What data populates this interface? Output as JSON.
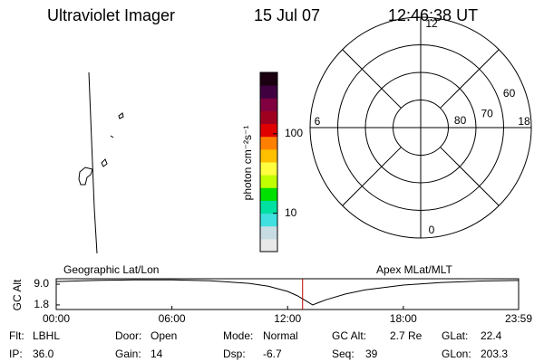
{
  "header": {
    "title": "Ultraviolet Imager",
    "date": "15 Jul 07",
    "time": "12:46:38 UT"
  },
  "map": {
    "label": "Geographic Lat/Lon"
  },
  "colorbar": {
    "label": "photon cm⁻²s⁻¹",
    "log": true,
    "lim": [
      3.3,
      590
    ],
    "ticks": [
      10,
      100
    ],
    "colors": [
      "#e8e8e8",
      "#c8dce4",
      "#40e0e0",
      "#00e0a0",
      "#00e000",
      "#c0ff00",
      "#ffff40",
      "#ffc000",
      "#ff8000",
      "#e00000",
      "#a00020",
      "#800040",
      "#400040",
      "#1a0010"
    ]
  },
  "polar": {
    "label": "Apex MLat/MLT",
    "rlim": [
      90,
      50
    ],
    "lat_rings": [
      80,
      70,
      60
    ],
    "mlt_labels": [
      {
        "value": 12,
        "label": "12"
      },
      {
        "value": 18,
        "label": "18"
      },
      {
        "value": 6,
        "label": "6"
      },
      {
        "value": 0,
        "label": "0"
      }
    ]
  },
  "chart_data": {
    "type": "line",
    "ylabel": "GC Alt",
    "x": [
      0,
      2,
      4,
      6,
      8,
      10,
      11,
      12,
      12.5,
      13,
      13.3,
      13.6,
      14,
      15,
      16,
      18,
      20,
      22,
      23.98
    ],
    "values": [
      9.9,
      10.3,
      10.5,
      10.5,
      10.2,
      9.3,
      8.3,
      6.5,
      5.0,
      3.0,
      1.8,
      2.6,
      3.6,
      5.6,
      7.0,
      8.7,
      9.6,
      10.1,
      10.3
    ],
    "color": "#000000",
    "marker_x": 12.777,
    "marker_color": "#c00000",
    "xlim": [
      0,
      23.98
    ],
    "xticks": [
      {
        "value": 0,
        "label": "00:00"
      },
      {
        "value": 6,
        "label": "06:00"
      },
      {
        "value": 12,
        "label": "12:00"
      },
      {
        "value": 18,
        "label": "18:00"
      },
      {
        "value": 23.98,
        "label": "23:59"
      }
    ],
    "ylim": [
      0.2,
      10.9
    ],
    "yticks": [
      {
        "value": 9.0,
        "label": "9.0"
      },
      1.8
    ]
  },
  "info": [
    [
      {
        "label": "Flt:",
        "value": "LBHL"
      },
      {
        "label": "Door:",
        "value": "Open"
      },
      {
        "label": "Mode:",
        "value": "Normal"
      },
      {
        "label": "GC Alt:",
        "value": "2.7 Re"
      },
      {
        "label": "GLat:",
        "value": "22.4"
      }
    ],
    [
      {
        "label": "IP:",
        "value": "36.0"
      },
      {
        "label": "Gain:",
        "value": "14"
      },
      {
        "label": "Dsp:",
        "value": "-6.7"
      },
      {
        "label": "Seq:",
        "value": "39"
      },
      {
        "label": "GLon:",
        "value": "203.3"
      }
    ]
  ]
}
